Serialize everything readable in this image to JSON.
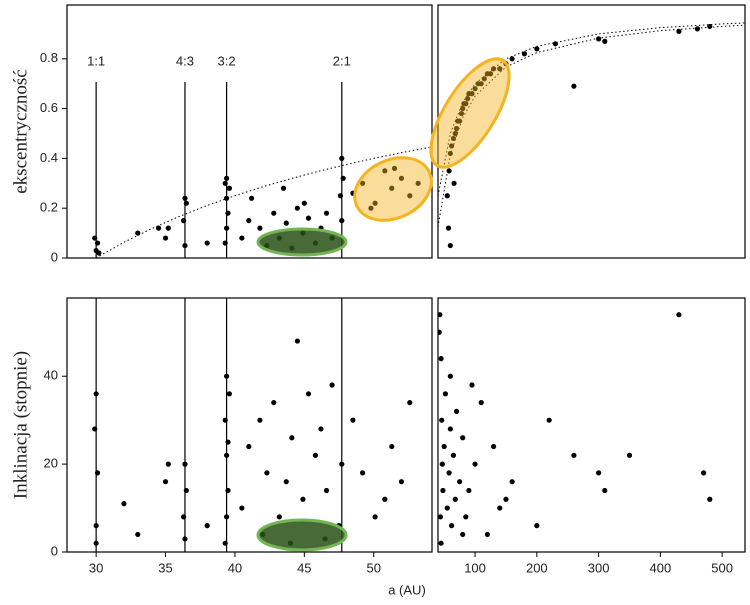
{
  "chart_data": [
    {
      "type": "scatter",
      "ylabel": "ekscentryczność",
      "xlim": [
        27.9,
        54.2
      ],
      "ylim": [
        0,
        1.016
      ],
      "yticks": [
        0,
        0.2,
        0.4,
        0.6,
        0.8
      ],
      "resonances": {
        "labels": [
          "1:1",
          "4:3",
          "3:2",
          "2:1"
        ],
        "x": [
          30,
          36.4,
          39.4,
          47.7
        ]
      },
      "x": [
        30.0,
        30.1,
        29.9,
        30.2,
        33,
        35,
        35.2,
        36.4,
        36.3,
        36.5,
        36.4,
        39.3,
        39.4,
        39.5,
        39.4,
        39.3,
        39.6,
        39.4,
        40.5,
        41,
        41.8,
        42.3,
        42.8,
        43.2,
        43.7,
        44.1,
        44.5,
        44.9,
        45.3,
        45.8,
        46.2,
        46.6,
        47.0,
        47.7,
        47.6,
        47.8,
        47.7,
        48.5,
        49.2,
        50.1,
        50.8,
        51.3,
        52.0,
        52.6,
        53.2,
        51.5,
        49.8,
        43.5,
        41.2,
        45.0,
        38.0,
        34.5
      ],
      "y": [
        0.03,
        0.06,
        0.08,
        0.02,
        0.1,
        0.08,
        0.12,
        0.05,
        0.15,
        0.22,
        0.24,
        0.06,
        0.12,
        0.18,
        0.24,
        0.3,
        0.28,
        0.32,
        0.08,
        0.15,
        0.12,
        0.05,
        0.18,
        0.08,
        0.14,
        0.04,
        0.2,
        0.1,
        0.16,
        0.06,
        0.12,
        0.18,
        0.08,
        0.15,
        0.25,
        0.32,
        0.4,
        0.26,
        0.3,
        0.22,
        0.35,
        0.28,
        0.32,
        0.25,
        0.3,
        0.36,
        0.2,
        0.28,
        0.24,
        0.22,
        0.06,
        0.12
      ],
      "curves": [
        {
          "x": [
            30,
            32,
            34,
            36,
            38,
            40,
            42,
            44,
            46,
            48,
            50,
            52,
            54
          ],
          "y": [
            0,
            0.063,
            0.118,
            0.167,
            0.211,
            0.25,
            0.286,
            0.318,
            0.348,
            0.375,
            0.4,
            0.423,
            0.444
          ]
        }
      ]
    },
    {
      "type": "scatter",
      "xlim": [
        40,
        537
      ],
      "ylim": [
        0,
        1.016
      ],
      "x": [
        55,
        58,
        60,
        62,
        65,
        68,
        70,
        72,
        75,
        78,
        80,
        82,
        85,
        88,
        90,
        95,
        100,
        105,
        110,
        115,
        120,
        125,
        130,
        140,
        150,
        160,
        180,
        200,
        230,
        260,
        300,
        310,
        430,
        460,
        480,
        57,
        60,
        66
      ],
      "y": [
        0.25,
        0.35,
        0.42,
        0.45,
        0.48,
        0.5,
        0.52,
        0.55,
        0.55,
        0.58,
        0.6,
        0.62,
        0.62,
        0.64,
        0.66,
        0.66,
        0.68,
        0.7,
        0.7,
        0.72,
        0.74,
        0.74,
        0.76,
        0.76,
        0.78,
        0.8,
        0.82,
        0.84,
        0.86,
        0.69,
        0.88,
        0.87,
        0.91,
        0.92,
        0.93,
        0.12,
        0.05,
        0.3
      ],
      "curves": [
        {
          "x": [
            40,
            60,
            80,
            100,
            150,
            200,
            300,
            400,
            500,
            537
          ],
          "y": [
            0.25,
            0.5,
            0.625,
            0.7,
            0.8,
            0.85,
            0.9,
            0.925,
            0.94,
            0.944
          ]
        },
        {
          "x": [
            40,
            60,
            80,
            100,
            150,
            200,
            300,
            400,
            500,
            537
          ],
          "y": [
            0.125,
            0.417,
            0.563,
            0.65,
            0.767,
            0.825,
            0.883,
            0.913,
            0.93,
            0.935
          ]
        }
      ]
    },
    {
      "type": "scatter",
      "ylabel": "Inklinacja (stopnie)",
      "xlabel": "a (AU)",
      "xlim": [
        27.9,
        54.2
      ],
      "ylim": [
        0,
        57.8
      ],
      "xticks": [
        30,
        35,
        40,
        45,
        50
      ],
      "yticks": [
        0,
        20,
        40
      ],
      "resonances": {
        "x": [
          30,
          36.4,
          39.4,
          47.7
        ]
      },
      "x": [
        30,
        30,
        30.1,
        29.9,
        30,
        32,
        33,
        35,
        35.2,
        36.4,
        36.3,
        36.5,
        36.4,
        38,
        39.3,
        39.4,
        39.5,
        39.4,
        39.3,
        39.6,
        39.4,
        39.5,
        40.5,
        41,
        41.8,
        42.3,
        42.8,
        43.2,
        43.7,
        44.1,
        44.5,
        44.9,
        45.3,
        45.8,
        46.2,
        46.6,
        47.0,
        47.7,
        47.5,
        48.5,
        49.2,
        50.1,
        50.8,
        51.3,
        52.0,
        52.6,
        44.0,
        42.0,
        46.5
      ],
      "y": [
        2,
        6,
        18,
        28,
        36,
        11,
        4,
        16,
        20,
        3,
        8,
        14,
        20,
        6,
        2,
        8,
        14,
        22,
        30,
        36,
        40,
        25,
        10,
        24,
        30,
        18,
        34,
        8,
        16,
        26,
        48,
        12,
        36,
        22,
        28,
        14,
        38,
        20,
        6,
        30,
        18,
        8,
        12,
        24,
        16,
        34,
        2,
        4,
        3
      ]
    },
    {
      "type": "scatter",
      "xlim": [
        40,
        537
      ],
      "ylim": [
        0,
        57.8
      ],
      "xticks": [
        100,
        200,
        300,
        400,
        500
      ],
      "x": [
        42,
        43,
        44,
        45,
        46,
        47,
        48,
        50,
        52,
        55,
        58,
        60,
        62,
        65,
        68,
        70,
        75,
        80,
        85,
        90,
        95,
        100,
        110,
        120,
        130,
        140,
        150,
        160,
        200,
        220,
        260,
        300,
        310,
        350,
        430,
        470,
        480,
        45,
        60,
        80
      ],
      "y": [
        50,
        54,
        8,
        2,
        30,
        20,
        14,
        24,
        36,
        10,
        18,
        28,
        6,
        22,
        12,
        32,
        16,
        26,
        8,
        14,
        38,
        20,
        34,
        4,
        24,
        10,
        12,
        16,
        6,
        30,
        22,
        18,
        14,
        22,
        54,
        18,
        12,
        44,
        40,
        4
      ]
    }
  ]
}
